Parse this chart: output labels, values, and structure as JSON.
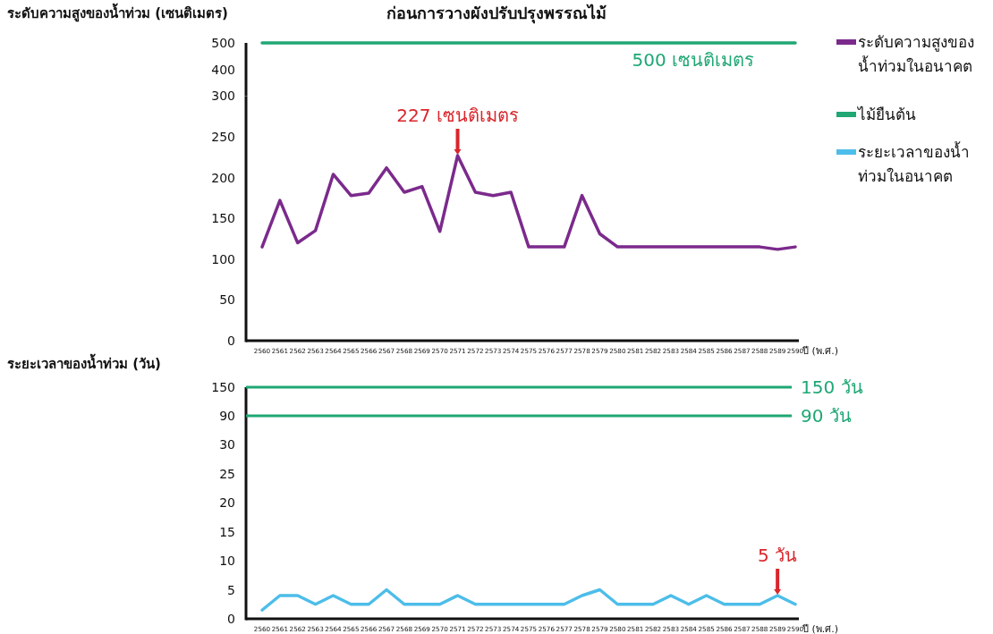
{
  "chart_data": [
    {
      "type": "line",
      "title": "ก่อนการวางผังปรับปรุงพรรณไม้",
      "ylabel": "ระดับความสูงของน้ำท่วม (เซนติเมตร)",
      "series": [
        {
          "name": "ไม้ยืนต้น",
          "color": "#1fa774",
          "values": [
            500,
            500,
            500,
            500,
            500,
            500,
            500,
            500,
            500,
            500,
            500,
            500,
            500,
            500,
            500,
            500,
            500,
            500,
            500,
            500,
            500,
            500,
            500,
            500,
            500,
            500,
            500,
            500,
            500,
            500,
            500
          ]
        }
      ],
      "ylim": [
        300,
        500
      ],
      "yticks": [
        400,
        500
      ],
      "tick_labels": "y",
      "annotations": [
        "500 เซนติเมตร"
      ],
      "grid": false,
      "legend": "right",
      "marker": "none",
      "line_style": "solid"
    },
    {
      "type": "line",
      "xlabel": "ปี (พ.ศ.)",
      "categories": [
        "2560",
        "2561",
        "2562",
        "2563",
        "2564",
        "2565",
        "2566",
        "2567",
        "2568",
        "2569",
        "2570",
        "2571",
        "2572",
        "2573",
        "2574",
        "2575",
        "2576",
        "2577",
        "2578",
        "2579",
        "2580",
        "2581",
        "2582",
        "2583",
        "2584",
        "2585",
        "2586",
        "2587",
        "2588",
        "2589",
        "2590"
      ],
      "series": [
        {
          "name": "ระดับความสูงของน้ำท่วมในอนาคต",
          "color": "#7b2a8c",
          "values": [
            115,
            172,
            120,
            135,
            204,
            178,
            181,
            212,
            182,
            189,
            134,
            227,
            182,
            178,
            182,
            115,
            115,
            115,
            178,
            131,
            115,
            115,
            115,
            115,
            115,
            115,
            115,
            115,
            115,
            112,
            115
          ]
        }
      ],
      "ylim": [
        0,
        300
      ],
      "yticks": [
        0,
        50,
        100,
        150,
        200,
        250,
        300
      ],
      "annotations": [
        {
          "text": "227 เซนติเมตร",
          "x": "2571",
          "y": 227
        }
      ],
      "grid": false,
      "legend": "right",
      "marker": "none",
      "line_style": "solid"
    },
    {
      "type": "line",
      "ylabel": "ระยะเวลาของน้ำท่วม (วัน)",
      "categories": [
        null,
        null,
        null,
        null,
        null,
        null,
        null,
        null,
        null,
        null,
        null,
        null,
        null,
        null,
        null,
        null,
        null,
        null,
        null,
        null,
        null,
        null,
        null,
        null,
        null,
        null,
        null,
        null,
        null,
        null,
        null
      ],
      "ylim": [
        30,
        150
      ],
      "yticks": [
        90,
        150
      ],
      "tick_labels": "y",
      "ref_lines": [
        {
          "axis": "y",
          "value": 150,
          "label": "150 วัน",
          "color": "#1fa774"
        },
        {
          "axis": "y",
          "value": 90,
          "label": "90 วัน",
          "color": "#1fa774"
        }
      ],
      "grid": false
    },
    {
      "type": "line",
      "xlabel": "ปี (พ.ศ.)",
      "categories": [
        "2560",
        "2561",
        "2562",
        "2563",
        "2564",
        "2565",
        "2566",
        "2567",
        "2568",
        "2569",
        "2570",
        "2571",
        "2572",
        "2573",
        "2574",
        "2575",
        "2576",
        "2577",
        "2578",
        "2579",
        "2580",
        "2581",
        "2582",
        "2583",
        "2584",
        "2585",
        "2586",
        "2587",
        "2588",
        "2589",
        "2590"
      ],
      "series": [
        {
          "name": "ระยะเวลาของน้ำท่วมในอนาคต",
          "color": "#4dbde9",
          "values": [
            1.5,
            4,
            4,
            2.5,
            4,
            2.5,
            2.5,
            5,
            2.5,
            2.5,
            2.5,
            4,
            2.5,
            2.5,
            2.5,
            2.5,
            2.5,
            2.5,
            4,
            5,
            2.5,
            2.5,
            2.5,
            4,
            2.5,
            4,
            2.5,
            2.5,
            2.5,
            4,
            2.5
          ]
        }
      ],
      "ylim": [
        0,
        30
      ],
      "yticks": [
        0,
        5,
        10,
        15,
        20,
        25,
        30
      ],
      "annotations": [
        {
          "text": "5 วัน",
          "x": "2589",
          "y": 4
        }
      ],
      "grid": false,
      "legend": "right",
      "marker": "none",
      "line_style": "solid"
    }
  ]
}
